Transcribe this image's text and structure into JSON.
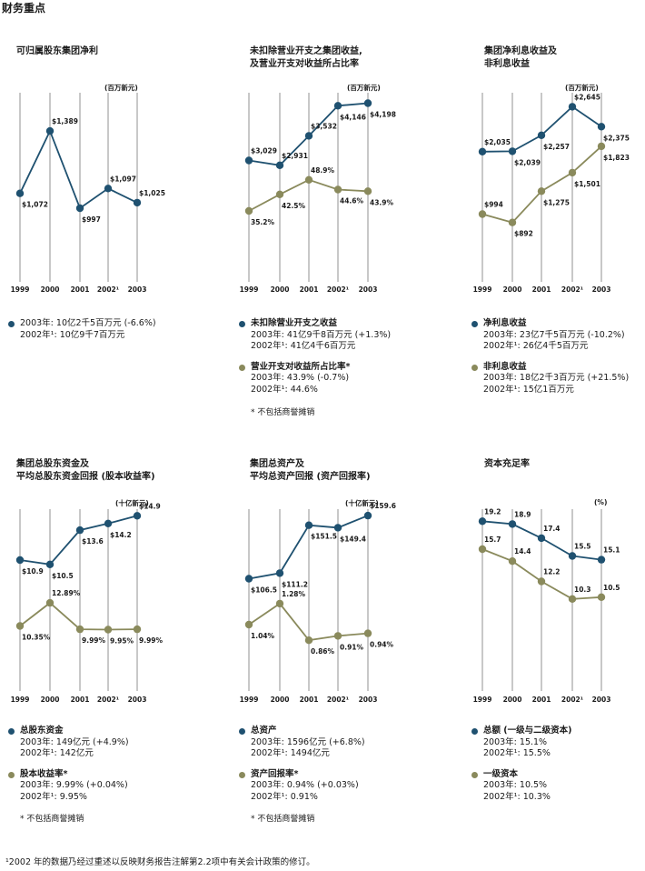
{
  "page_title": "财务重点",
  "colors": {
    "blue": "#1f5170",
    "olive": "#8a8a5c",
    "grid": "#c8c8c8"
  },
  "footnote": "¹2002 年的数据乃经过重述以反映财务报告注解第2.2项中有关会计政策的修订。",
  "panels": [
    {
      "title": "可归属股东集团净利",
      "unit": "(百万新元)",
      "legend": [
        {
          "name": "",
          "lines": [
            "2003年:  10亿2千5百万元 (-6.6%)",
            "2002年¹:  10亿9千7百万元"
          ]
        }
      ],
      "note": ""
    },
    {
      "title": "未扣除营业开支之集团收益,\n及营业开支对收益所占比率",
      "unit": "(百万新元)",
      "legend": [
        {
          "name": "未扣除营业开支之收益",
          "lines": [
            "2003年:  41亿9千8百万元 (+1.3%)",
            "2002年¹:  41亿4千6百万元"
          ]
        },
        {
          "name": "营业开支对收益所占比率*",
          "lines": [
            "2003年:  43.9% (-0.7%)",
            "2002年¹:  44.6%"
          ]
        }
      ],
      "note": "*  不包括商誉摊销"
    },
    {
      "title": "集团净利息收益及\n非利息收益",
      "unit": "(百万新元)",
      "legend": [
        {
          "name": "净利息收益",
          "lines": [
            "2003年:  23亿7千5百万元 (-10.2%)",
            "2002年¹:  26亿4千5百万元"
          ]
        },
        {
          "name": "非利息收益",
          "lines": [
            "2003年:  18亿2千3百万元 (+21.5%)",
            "2002年¹:  15亿1百万元"
          ]
        }
      ],
      "note": ""
    },
    {
      "title": "集团总股东资金及\n平均总股东资金回报 (股本收益率)",
      "unit": "(十亿新元)",
      "legend": [
        {
          "name": "总股东资金",
          "lines": [
            "2003年:  149亿元 (+4.9%)",
            "2002年¹:  142亿元"
          ]
        },
        {
          "name": "股本收益率*",
          "lines": [
            "2003年:  9.99% (+0.04%)",
            "2002年¹:  9.95%"
          ]
        }
      ],
      "note": "*  不包括商誉摊销"
    },
    {
      "title": "集团总资产及\n平均总资产回报 (资产回报率)",
      "unit": "(十亿新元)",
      "legend": [
        {
          "name": "总资产",
          "lines": [
            "2003年:  1596亿元 (+6.8%)",
            "2002年¹:  1494亿元"
          ]
        },
        {
          "name": "资产回报率*",
          "lines": [
            "2003年:  0.94% (+0.03%)",
            "2002年¹:  0.91%"
          ]
        }
      ],
      "note": "*  不包括商誉摊销"
    },
    {
      "title": "资本充足率",
      "unit": "(%)",
      "legend": [
        {
          "name": "总额 (一级与二级资本)",
          "lines": [
            "2003年:  15.1%",
            "2002年¹:  15.5%"
          ]
        },
        {
          "name": "一级资本",
          "lines": [
            "2003年:  10.5%",
            "2002年¹:  10.3%"
          ]
        }
      ],
      "note": ""
    }
  ],
  "chart_data": [
    {
      "type": "line",
      "categories": [
        "1999",
        "2000",
        "2001",
        "2002¹",
        "2003"
      ],
      "series": [
        {
          "color": "blue",
          "values": [
            1072,
            1389,
            997,
            1097,
            1025
          ],
          "labels": [
            "$1,072",
            "$1,389",
            "$997",
            "$1,097",
            "$1,025"
          ]
        }
      ]
    },
    {
      "type": "line",
      "categories": [
        "1999",
        "2000",
        "2001",
        "2002¹",
        "2003"
      ],
      "series": [
        {
          "color": "blue",
          "values": [
            3029,
            2931,
            3532,
            4146,
            4198
          ],
          "labels": [
            "$3,029",
            "$2,931",
            "$3,532",
            "$4,146",
            "$4,198"
          ]
        },
        {
          "color": "olive",
          "values": [
            35.2,
            42.5,
            48.9,
            44.6,
            43.9
          ],
          "labels": [
            "35.2%",
            "42.5%",
            "48.9%",
            "44.6%",
            "43.9%"
          ]
        }
      ]
    },
    {
      "type": "line",
      "categories": [
        "1999",
        "2000",
        "2001",
        "2002¹",
        "2003"
      ],
      "series": [
        {
          "color": "blue",
          "values": [
            2035,
            2039,
            2257,
            2645,
            2375
          ],
          "labels": [
            "$2,035",
            "$2,039",
            "$2,257",
            "$2,645",
            "$2,375"
          ]
        },
        {
          "color": "olive",
          "values": [
            994,
            892,
            1275,
            1501,
            1823
          ],
          "labels": [
            "$994",
            "$892",
            "$1,275",
            "$1,501",
            "$1,823"
          ]
        }
      ]
    },
    {
      "type": "line",
      "categories": [
        "1999",
        "2000",
        "2001",
        "2002¹",
        "2003"
      ],
      "series": [
        {
          "color": "blue",
          "values": [
            10.9,
            10.5,
            13.6,
            14.2,
            14.9
          ],
          "labels": [
            "$10.9",
            "$10.5",
            "$13.6",
            "$14.2",
            "$14.9"
          ]
        },
        {
          "color": "olive",
          "values": [
            10.35,
            12.89,
            9.99,
            9.95,
            9.99
          ],
          "labels": [
            "10.35%",
            "12.89%",
            "9.99%",
            "9.95%",
            "9.99%"
          ]
        }
      ]
    },
    {
      "type": "line",
      "categories": [
        "1999",
        "2000",
        "2001",
        "2002¹",
        "2003"
      ],
      "series": [
        {
          "color": "blue",
          "values": [
            106.5,
            111.2,
            151.5,
            149.4,
            159.6
          ],
          "labels": [
            "$106.5",
            "$111.2",
            "$151.5",
            "$149.4",
            "$159.6"
          ]
        },
        {
          "color": "olive",
          "values": [
            1.04,
            1.28,
            0.86,
            0.91,
            0.94
          ],
          "labels": [
            "1.04%",
            "1.28%",
            "0.86%",
            "0.91%",
            "0.94%"
          ]
        }
      ]
    },
    {
      "type": "line",
      "categories": [
        "1999",
        "2000",
        "2001",
        "2002¹",
        "2003"
      ],
      "series": [
        {
          "color": "blue",
          "values": [
            19.2,
            18.9,
            17.4,
            15.5,
            15.1
          ],
          "labels": [
            "19.2",
            "18.9",
            "17.4",
            "15.5",
            "15.1"
          ]
        },
        {
          "color": "olive",
          "values": [
            15.7,
            14.4,
            12.2,
            10.3,
            10.5
          ],
          "labels": [
            "15.7",
            "14.4",
            "12.2",
            "10.3",
            "10.5"
          ]
        }
      ]
    }
  ]
}
